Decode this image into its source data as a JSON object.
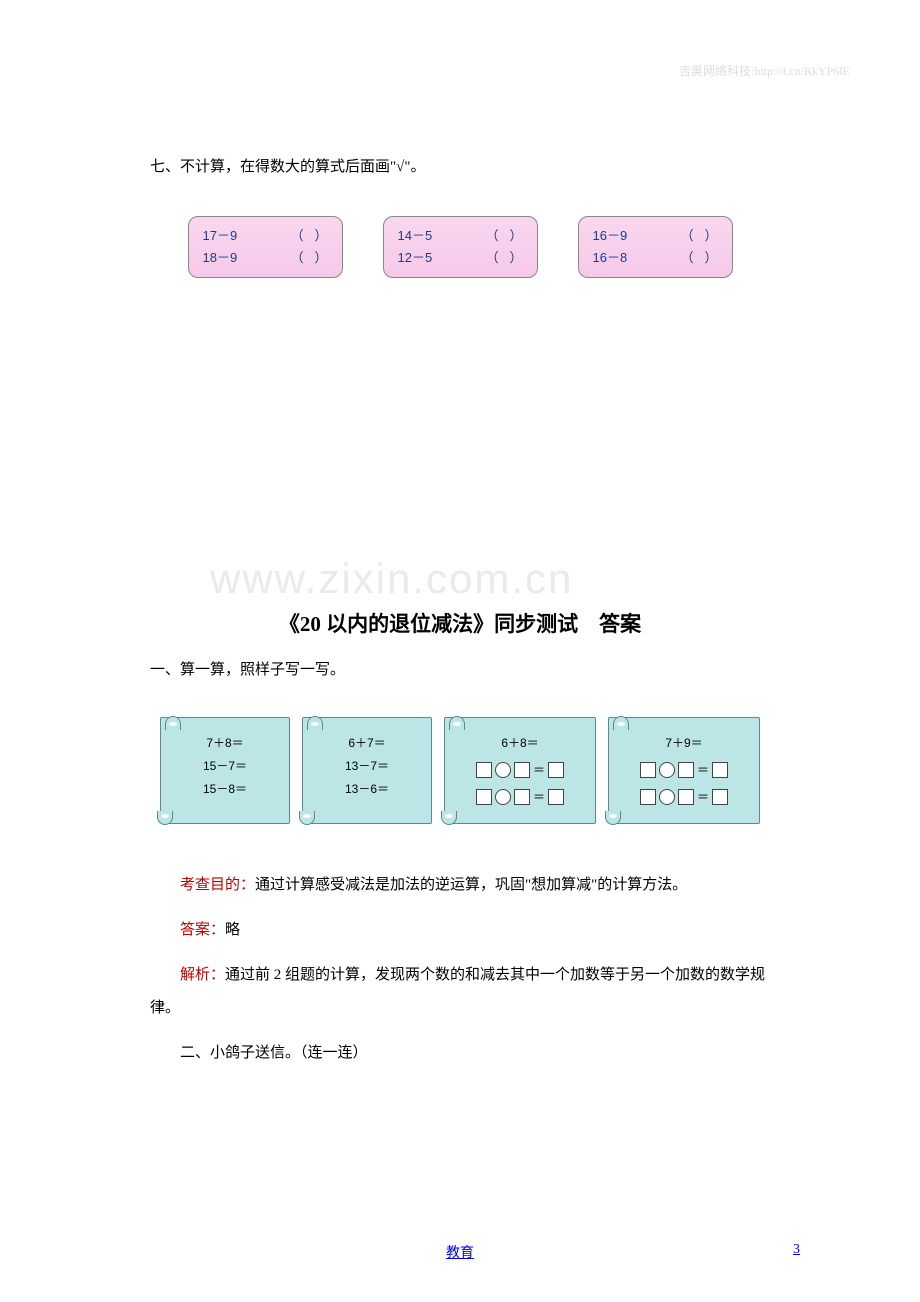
{
  "header_watermark": "吉奥网络科技:http://t.cn/RkYP6lE",
  "center_watermark": "www.zixin.com.cn",
  "q7": {
    "title": "七、不计算，在得数大的算式后面画\"√\"。",
    "boxes": [
      {
        "rows": [
          {
            "expr": "17－9",
            "lp": "（",
            "rp": "）"
          },
          {
            "expr": "18－9",
            "lp": "（",
            "rp": "）"
          }
        ]
      },
      {
        "rows": [
          {
            "expr": "14－5",
            "lp": "（",
            "rp": "）"
          },
          {
            "expr": "12－5",
            "lp": "（",
            "rp": "）"
          }
        ]
      },
      {
        "rows": [
          {
            "expr": "16－9",
            "lp": "（",
            "rp": "）"
          },
          {
            "expr": "16－8",
            "lp": "（",
            "rp": "）"
          }
        ]
      }
    ]
  },
  "answer_title": "《20 以内的退位减法》同步测试　答案",
  "q1a": {
    "title": "一、算一算，照样子写一写。",
    "scrolls": [
      {
        "type": "text",
        "lines": [
          "7＋8＝",
          "15－7＝",
          "15－8＝"
        ]
      },
      {
        "type": "text",
        "lines": [
          "6＋7＝",
          "13－7＝",
          "13－6＝"
        ]
      },
      {
        "type": "mixed",
        "top": "6＋8＝"
      },
      {
        "type": "mixed",
        "top": "7＋9＝"
      }
    ]
  },
  "analysis": {
    "purpose_label": "考查目的：",
    "purpose_text": "通过计算感受减法是加法的逆运算，巩固\"想加算减\"的计算方法。",
    "answer_label": "答案：",
    "answer_text": "略",
    "explain_label": "解析：",
    "explain_text": "通过前 2 组题的计算，发现两个数的和减去其中一个加数等于另一个加数的数学规律。"
  },
  "q2a_title": "二、小鸽子送信。（连一连）",
  "footer_link": "教育",
  "page_number": "3"
}
